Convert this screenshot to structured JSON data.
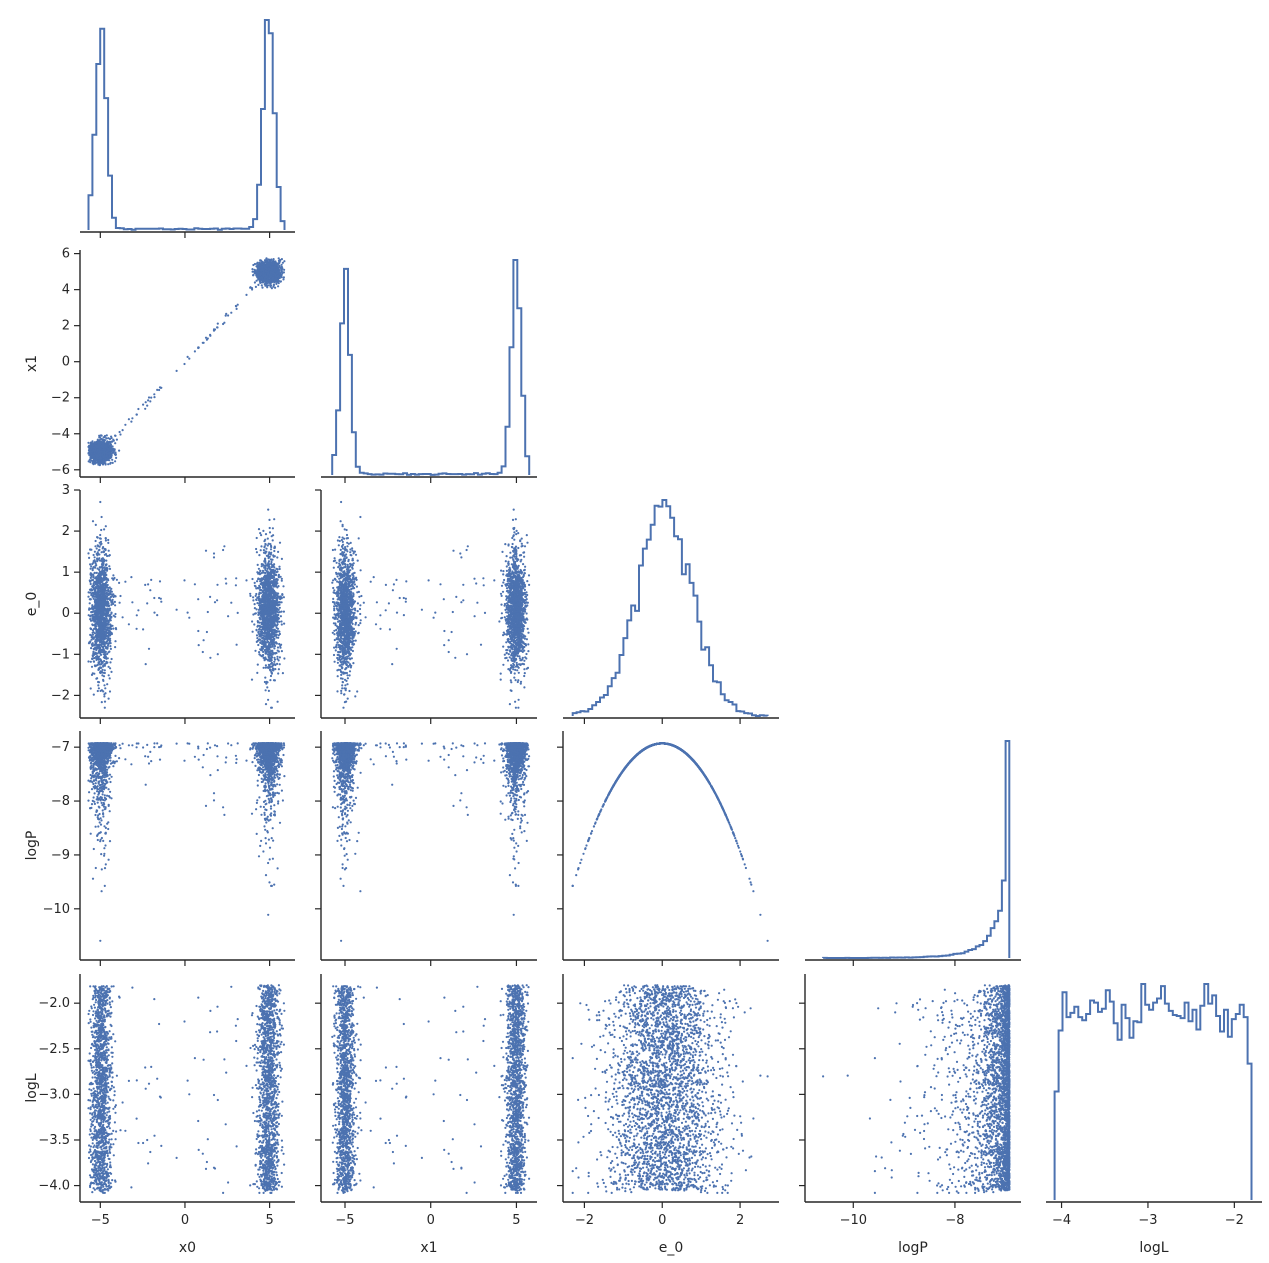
{
  "chart_data": {
    "type": "pairplot",
    "variables": [
      "x0",
      "x1",
      "e_0",
      "logP",
      "logL"
    ],
    "axes": {
      "x0": {
        "label": "x0",
        "lim": [
          -6.2,
          6.5
        ],
        "ticks": [
          -5,
          0,
          5
        ],
        "tick_labels": [
          "−5",
          "0",
          "5"
        ]
      },
      "x1": {
        "label": "x1",
        "lim": [
          -6.4,
          6.2
        ],
        "ticks": [
          -6,
          -4,
          -2,
          0,
          2,
          4,
          6
        ],
        "tick_labels": [
          "−6",
          "−4",
          "−2",
          "0",
          "2",
          "4",
          "6"
        ],
        "x_ticks": [
          -5,
          0,
          5
        ],
        "x_tick_labels": [
          "−5",
          "0",
          "5"
        ]
      },
      "e_0": {
        "label": "e_0",
        "lim": [
          -2.55,
          3.0
        ],
        "ticks": [
          -2,
          -1,
          0,
          1,
          2,
          3
        ],
        "tick_labels": [
          "−2",
          "−1",
          "0",
          "1",
          "2",
          "3"
        ],
        "x_ticks": [
          -2,
          0,
          2
        ],
        "x_tick_labels": [
          "−2",
          "0",
          "2"
        ]
      },
      "logP": {
        "label": "logP",
        "lim": [
          -10.95,
          -6.7
        ],
        "ticks": [
          -7,
          -8,
          -9,
          -10
        ],
        "tick_labels": [
          "−7",
          "−8",
          "−9",
          "−10"
        ],
        "x_ticks": [
          -10,
          -8
        ],
        "x_tick_labels": [
          "−10",
          "−8"
        ]
      },
      "logL": {
        "label": "logL",
        "lim": [
          -4.18,
          -1.68
        ],
        "ticks": [
          -2.0,
          -2.5,
          -3.0,
          -3.5,
          -4.0
        ],
        "tick_labels": [
          "−2.0",
          "−2.5",
          "−3.0",
          "−3.5",
          "−4.0"
        ],
        "x_ticks": [
          -4,
          -3,
          -2
        ],
        "x_tick_labels": [
          "−4",
          "−3",
          "−2"
        ]
      }
    },
    "histograms": {
      "x0": {
        "peaks": [
          {
            "center": -4.9,
            "width": 0.35,
            "height": 0.92
          },
          {
            "center": 4.95,
            "width": 0.35,
            "height": 1.0
          }
        ],
        "floor": 0.015
      },
      "x1": {
        "peaks": [
          {
            "center": -4.95,
            "width": 0.3,
            "height": 0.87
          },
          {
            "center": 5.0,
            "width": 0.3,
            "height": 1.0
          }
        ],
        "floor": 0.02
      },
      "e_0": {
        "distribution": "normal",
        "mean": 0.05,
        "sd": 0.75
      },
      "logP": {
        "distribution": "half-normal-tail",
        "max": -6.93,
        "note": "sharp spike at upper edge"
      },
      "logL": {
        "distribution": "broad plateau",
        "range": [
          -4.1,
          -1.75
        ]
      }
    },
    "scatter": {
      "color": "#4c72b0",
      "x1_vs_x0": "strong linear relation, clusters at (-5,-5) and (5,5)",
      "e_0_vs_x0": "two vertical clusters at x0=-5 and x0=5, e_0 in [-2.3, 2.7]",
      "logP_vs_e_0": "inverted parabola, logP = -6.93 - 0.5*e_0^2",
      "logL_vs_logP": "dense near logP=-7, sparse towards -11"
    },
    "line_color": "#4c72b0"
  }
}
